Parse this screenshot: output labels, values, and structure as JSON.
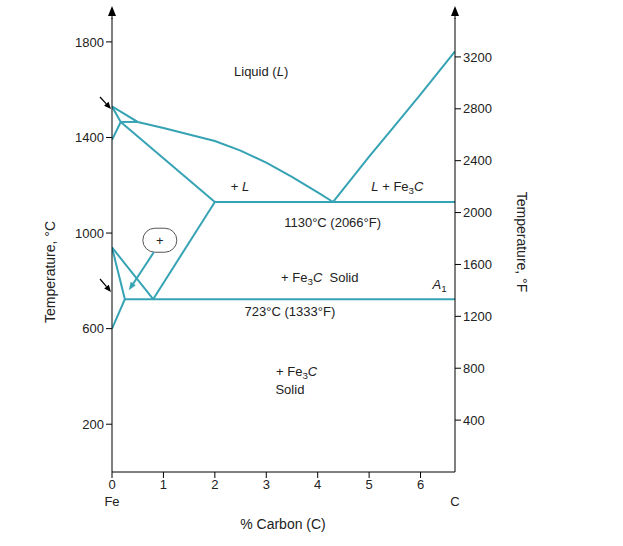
{
  "chart_data": {
    "type": "line",
    "xlabel": "% Carbon (C)",
    "ylabel": "Temperature, °C",
    "y2label": "Temperature, °F",
    "xlim": [
      0,
      6.67
    ],
    "xticks": [
      0,
      1,
      2,
      3,
      4,
      5,
      6
    ],
    "ylim": [
      0,
      1900
    ],
    "yticks": [
      200,
      600,
      1000,
      1400,
      1800
    ],
    "y2lim": [
      0,
      3500
    ],
    "y2ticks": [
      400,
      800,
      1200,
      1600,
      2000,
      2400,
      2800,
      3200
    ],
    "x_end_labels": [
      "Fe",
      "C"
    ],
    "grid": false,
    "color": "#36a3b5",
    "series": [
      {
        "x": [
          0,
          0.5,
          1,
          2,
          2.5,
          3,
          3.5,
          4,
          4.3
        ],
        "values": [
          1530,
          1465,
          1440,
          1385,
          1345,
          1295,
          1235,
          1170,
          1130
        ]
      },
      {
        "x": [
          4.3,
          5,
          5.5,
          6,
          6.67
        ],
        "values": [
          1130,
          1320,
          1450,
          1580,
          1760
        ]
      },
      {
        "x": [
          0,
          0.17
        ],
        "values": [
          1530,
          1465
        ]
      },
      {
        "x": [
          0.17,
          0.5
        ],
        "values": [
          1465,
          1465
        ]
      },
      {
        "x": [
          0.17,
          0
        ],
        "values": [
          1465,
          1390
        ]
      },
      {
        "x": [
          0.17,
          2
        ],
        "values": [
          1465,
          1130
        ]
      },
      {
        "x": [
          2,
          6.67
        ],
        "values": [
          1130,
          1130
        ]
      },
      {
        "x": [
          2,
          0.8
        ],
        "values": [
          1130,
          723
        ]
      },
      {
        "x": [
          0,
          0.8
        ],
        "values": [
          940,
          723
        ]
      },
      {
        "x": [
          0.25,
          6.67
        ],
        "values": [
          723,
          723
        ]
      },
      {
        "x": [
          0,
          0.25
        ],
        "values": [
          940,
          723
        ]
      },
      {
        "x": [
          0.25,
          0
        ],
        "values": [
          723,
          600
        ]
      }
    ],
    "annotations": [
      {
        "text": "Liquid (L)",
        "x": 2.9,
        "y": 1680
      },
      {
        "text": "+ L",
        "x": 2.49,
        "y": 1196
      },
      {
        "text": "L + Fe3C",
        "x": 5.55,
        "y": 1196
      },
      {
        "text": "1130°C (2066°F)",
        "x": 4.29,
        "y": 1046
      },
      {
        "text": "+ Fe3C  Solid",
        "x": 4.04,
        "y": 815
      },
      {
        "text": "A1",
        "x": 6.37,
        "y": 786
      },
      {
        "text": "723°C (1333°F)",
        "x": 3.46,
        "y": 672
      },
      {
        "text": "+ Fe3C",
        "x": 3.59,
        "y": 421
      },
      {
        "text": "Solid",
        "x": 3.46,
        "y": 347
      }
    ],
    "callout": {
      "text": "+",
      "x": 0.93,
      "y": 970
    }
  }
}
